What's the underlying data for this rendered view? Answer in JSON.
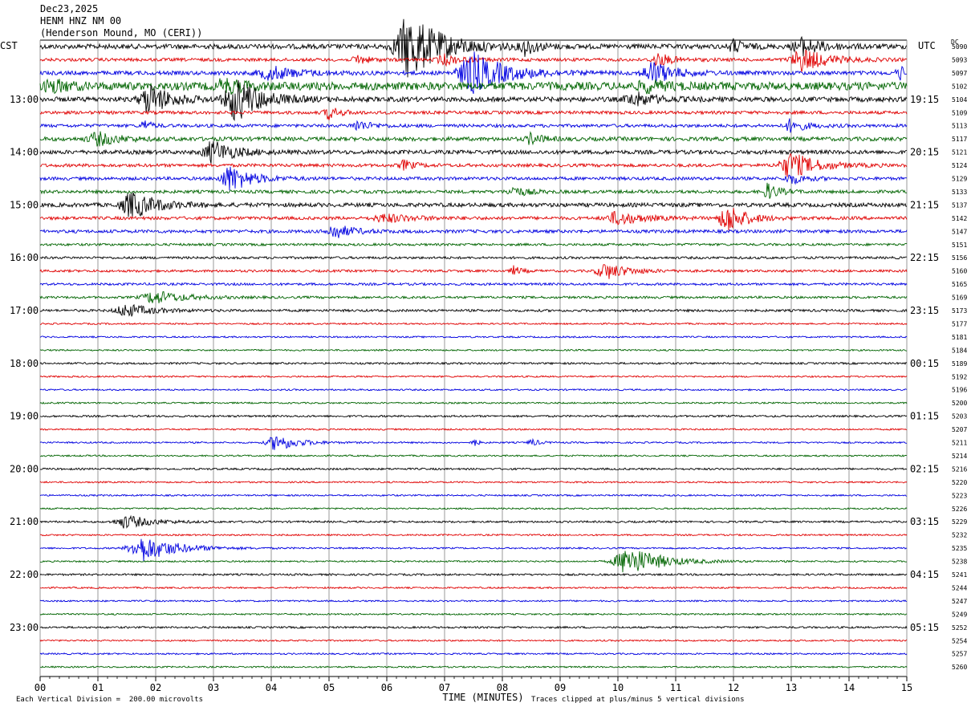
{
  "header": {
    "date": "Dec23,2025",
    "station": "HENM HNZ NM 00",
    "location": "(Henderson Mound, MO (CERI))"
  },
  "labels": {
    "left_tz": "CST",
    "right_tz": "UTC",
    "dc_label": "DC"
  },
  "footer": {
    "scale_text": "Each Vertical Division =  200.00 microvolts",
    "clip_text": "Traces clipped at plus/minus 5 vertical divisions"
  },
  "colors": {
    "cycle": [
      "#000000",
      "#e00000",
      "#0000e0",
      "#006400"
    ],
    "grid": "#808080"
  },
  "chart_data": {
    "type": "line",
    "title": "Dec23,2025",
    "xlabel": "TIME (MINUTES)",
    "ylabel": "",
    "xlim": [
      0,
      15
    ],
    "x_ticks": [
      "00",
      "01",
      "02",
      "03",
      "04",
      "05",
      "06",
      "07",
      "08",
      "09",
      "10",
      "11",
      "12",
      "13",
      "14",
      "15"
    ],
    "trace_count": 48,
    "left_time_labels": [
      {
        "trace": 4,
        "label": "13:00"
      },
      {
        "trace": 8,
        "label": "14:00"
      },
      {
        "trace": 12,
        "label": "15:00"
      },
      {
        "trace": 16,
        "label": "16:00"
      },
      {
        "trace": 20,
        "label": "17:00"
      },
      {
        "trace": 24,
        "label": "18:00"
      },
      {
        "trace": 28,
        "label": "19:00"
      },
      {
        "trace": 32,
        "label": "20:00"
      },
      {
        "trace": 36,
        "label": "21:00"
      },
      {
        "trace": 40,
        "label": "22:00"
      },
      {
        "trace": 44,
        "label": "23:00"
      }
    ],
    "right_time_labels": [
      {
        "trace": 4,
        "label": "19:15"
      },
      {
        "trace": 8,
        "label": "20:15"
      },
      {
        "trace": 12,
        "label": "21:15"
      },
      {
        "trace": 16,
        "label": "22:15"
      },
      {
        "trace": 20,
        "label": "23:15"
      },
      {
        "trace": 24,
        "label": "00:15"
      },
      {
        "trace": 28,
        "label": "01:15"
      },
      {
        "trace": 32,
        "label": "02:15"
      },
      {
        "trace": 36,
        "label": "03:15"
      },
      {
        "trace": 40,
        "label": "04:15"
      },
      {
        "trace": 44,
        "label": "05:15"
      }
    ],
    "dc_offsets": [
      "5090",
      "5093",
      "5097",
      "5102",
      "5104",
      "5109",
      "5113",
      "5117",
      "5121",
      "5124",
      "5129",
      "5133",
      "5137",
      "5142",
      "5147",
      "5151",
      "5156",
      "5160",
      "5165",
      "5169",
      "5173",
      "5177",
      "5181",
      "5184",
      "5189",
      "5192",
      "5196",
      "5200",
      "5203",
      "5207",
      "5211",
      "5214",
      "5216",
      "5220",
      "5223",
      "5226",
      "5229",
      "5232",
      "5235",
      "5238",
      "5241",
      "5244",
      "5247",
      "5249",
      "5252",
      "5254",
      "5257",
      "5260"
    ],
    "base_noise": [
      3,
      2,
      2.5,
      5,
      3,
      2,
      2,
      2.5,
      2.5,
      2,
      2,
      2,
      2.5,
      2,
      2,
      1.5,
      1.5,
      1.5,
      1.5,
      1.5,
      1.5,
      1,
      1,
      1,
      1.2,
      1,
      1,
      1,
      1.2,
      1,
      1,
      1,
      1.2,
      1,
      1,
      1,
      1.2,
      1,
      1,
      1,
      1.2,
      1,
      1,
      1,
      1.2,
      1,
      1,
      1
    ],
    "events": [
      {
        "trace": 0,
        "minute": 6.4,
        "amp": 40,
        "dur": 0.9
      },
      {
        "trace": 0,
        "minute": 8.4,
        "amp": 10,
        "dur": 0.3
      },
      {
        "trace": 0,
        "minute": 12.0,
        "amp": 8,
        "dur": 0.3
      },
      {
        "trace": 0,
        "minute": 13.2,
        "amp": 10,
        "dur": 0.6
      },
      {
        "trace": 1,
        "minute": 5.5,
        "amp": 6,
        "dur": 0.3
      },
      {
        "trace": 1,
        "minute": 7.0,
        "amp": 6,
        "dur": 0.5
      },
      {
        "trace": 1,
        "minute": 10.7,
        "amp": 8,
        "dur": 0.4
      },
      {
        "trace": 1,
        "minute": 13.2,
        "amp": 14,
        "dur": 0.7
      },
      {
        "trace": 2,
        "minute": 4.0,
        "amp": 8,
        "dur": 0.8
      },
      {
        "trace": 2,
        "minute": 7.5,
        "amp": 25,
        "dur": 0.9
      },
      {
        "trace": 2,
        "minute": 10.6,
        "amp": 14,
        "dur": 0.6
      },
      {
        "trace": 2,
        "minute": 14.9,
        "amp": 8,
        "dur": 0.3
      },
      {
        "trace": 3,
        "minute": 0.2,
        "amp": 8,
        "dur": 0.4
      },
      {
        "trace": 3,
        "minute": 3.2,
        "amp": 8,
        "dur": 0.5
      },
      {
        "trace": 3,
        "minute": 10.5,
        "amp": 6,
        "dur": 0.5
      },
      {
        "trace": 4,
        "minute": 1.9,
        "amp": 18,
        "dur": 0.6
      },
      {
        "trace": 4,
        "minute": 3.4,
        "amp": 26,
        "dur": 0.7
      },
      {
        "trace": 4,
        "minute": 10.3,
        "amp": 8,
        "dur": 0.6
      },
      {
        "trace": 5,
        "minute": 5.0,
        "amp": 8,
        "dur": 0.3
      },
      {
        "trace": 6,
        "minute": 1.8,
        "amp": 7,
        "dur": 0.2
      },
      {
        "trace": 6,
        "minute": 5.5,
        "amp": 6,
        "dur": 0.4
      },
      {
        "trace": 6,
        "minute": 13.0,
        "amp": 8,
        "dur": 0.4
      },
      {
        "trace": 7,
        "minute": 1.0,
        "amp": 8,
        "dur": 0.6
      },
      {
        "trace": 7,
        "minute": 8.5,
        "amp": 7,
        "dur": 0.3
      },
      {
        "trace": 8,
        "minute": 3.0,
        "amp": 14,
        "dur": 0.6
      },
      {
        "trace": 9,
        "minute": 6.3,
        "amp": 6,
        "dur": 0.3
      },
      {
        "trace": 9,
        "minute": 13.0,
        "amp": 16,
        "dur": 0.7
      },
      {
        "trace": 10,
        "minute": 3.3,
        "amp": 16,
        "dur": 0.6
      },
      {
        "trace": 10,
        "minute": 13.0,
        "amp": 6,
        "dur": 0.4
      },
      {
        "trace": 11,
        "minute": 8.2,
        "amp": 6,
        "dur": 0.4
      },
      {
        "trace": 11,
        "minute": 12.6,
        "amp": 10,
        "dur": 0.3
      },
      {
        "trace": 12,
        "minute": 1.6,
        "amp": 16,
        "dur": 0.7
      },
      {
        "trace": 13,
        "minute": 6.0,
        "amp": 5,
        "dur": 0.8
      },
      {
        "trace": 13,
        "minute": 10.0,
        "amp": 8,
        "dur": 0.7
      },
      {
        "trace": 13,
        "minute": 11.9,
        "amp": 18,
        "dur": 0.5
      },
      {
        "trace": 14,
        "minute": 5.1,
        "amp": 9,
        "dur": 0.5
      },
      {
        "trace": 17,
        "minute": 8.2,
        "amp": 6,
        "dur": 0.2
      },
      {
        "trace": 17,
        "minute": 9.8,
        "amp": 10,
        "dur": 0.6
      },
      {
        "trace": 19,
        "minute": 2.0,
        "amp": 8,
        "dur": 0.8
      },
      {
        "trace": 20,
        "minute": 1.5,
        "amp": 8,
        "dur": 0.7
      },
      {
        "trace": 30,
        "minute": 4.1,
        "amp": 10,
        "dur": 0.6
      },
      {
        "trace": 30,
        "minute": 7.5,
        "amp": 7,
        "dur": 0.1
      },
      {
        "trace": 30,
        "minute": 8.5,
        "amp": 5,
        "dur": 0.2
      },
      {
        "trace": 36,
        "minute": 1.5,
        "amp": 8,
        "dur": 0.7
      },
      {
        "trace": 38,
        "minute": 1.8,
        "amp": 16,
        "dur": 0.9
      },
      {
        "trace": 39,
        "minute": 10.2,
        "amp": 18,
        "dur": 0.9
      }
    ]
  }
}
